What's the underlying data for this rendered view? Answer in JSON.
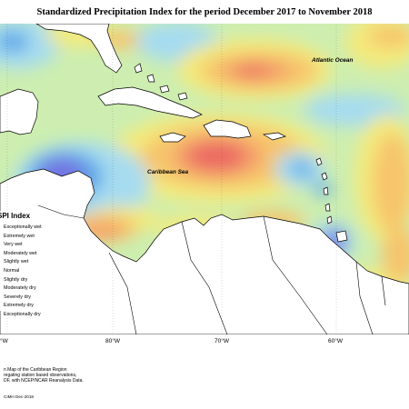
{
  "map": {
    "title": "Standardized Precipitation Index for the period December 2017 to November 2018",
    "ocean_labels": {
      "atlantic": "Atlantic Ocean",
      "caribbean": "Caribbean Sea"
    },
    "colors": {
      "normal": "#cdeeb0",
      "slightly_wet": "#a6dcf0",
      "moderately_wet": "#5fa9e8",
      "very_wet": "#7373e2",
      "slightly_dry": "#f4ea7c",
      "moderately_dry": "#f6c56c",
      "severely_dry": "#f4a06a",
      "extremely_dry": "#ec6b64",
      "land": "#ffffff",
      "coastline": "#000000"
    }
  },
  "legend": {
    "title": "SPI Index",
    "items": [
      "Exceptionally wet",
      "Extremely wet",
      "Very wet",
      "Moderately wet",
      "Slightly wet",
      "Normal",
      "Slightly dry",
      "Moderately dry",
      "Severely dry",
      "Extremely dry",
      "Exceptionally dry"
    ]
  },
  "longitude_labels": [
    "°W",
    "80°W",
    "70°W",
    "60°W"
  ],
  "credits": {
    "lines": [
      "n Map of the Caribbean Region",
      "regating station based observations,",
      "DF, with NCEP/NCAR Reanalysis Data."
    ],
    "stamp": "CIMH Dec-2018"
  }
}
